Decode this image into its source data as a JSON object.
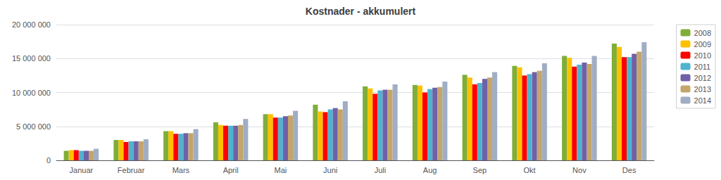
{
  "chart_data": {
    "type": "bar",
    "title": "Kostnader - akkumulert",
    "categories": [
      "Januar",
      "Februar",
      "Mars",
      "April",
      "Mai",
      "Juni",
      "Juli",
      "Aug",
      "Sep",
      "Okt",
      "Nov",
      "Des"
    ],
    "series": [
      {
        "name": "2008",
        "color": "#7fae39",
        "values": [
          1400000,
          3000000,
          4300000,
          5600000,
          6800000,
          8200000,
          10900000,
          11100000,
          12600000,
          13900000,
          15400000,
          17200000
        ]
      },
      {
        "name": "2009",
        "color": "#ffc000",
        "values": [
          1500000,
          3000000,
          4300000,
          5200000,
          6800000,
          7200000,
          10600000,
          11000000,
          12200000,
          13700000,
          15100000,
          16700000
        ]
      },
      {
        "name": "2010",
        "color": "#ff0000",
        "values": [
          1500000,
          2700000,
          3900000,
          5100000,
          6300000,
          7100000,
          9800000,
          10000000,
          11200000,
          12500000,
          13800000,
          15200000
        ]
      },
      {
        "name": "2011",
        "color": "#4fb3ce",
        "values": [
          1400000,
          2800000,
          3900000,
          5100000,
          6300000,
          7500000,
          10300000,
          10500000,
          11400000,
          12700000,
          14100000,
          15200000
        ]
      },
      {
        "name": "2012",
        "color": "#7060a8",
        "values": [
          1400000,
          2800000,
          4000000,
          5100000,
          6500000,
          7700000,
          10400000,
          10700000,
          12000000,
          13000000,
          14400000,
          15700000
        ]
      },
      {
        "name": "2013",
        "color": "#c4a56a",
        "values": [
          1400000,
          2800000,
          4000000,
          5200000,
          6600000,
          7500000,
          10400000,
          10800000,
          12200000,
          13200000,
          14200000,
          16000000
        ]
      },
      {
        "name": "2014",
        "color": "#a0aec4",
        "values": [
          1700000,
          3100000,
          4600000,
          6100000,
          7300000,
          8700000,
          11200000,
          11600000,
          13000000,
          14300000,
          15400000,
          17400000
        ]
      }
    ],
    "ylim": [
      0,
      20000000
    ],
    "yticks": [
      0,
      {
        "value": 5000000,
        "label": "5 000 000"
      },
      {
        "value": 10000000,
        "label": "10 000 000"
      },
      {
        "value": 15000000,
        "label": "15 000 000"
      },
      {
        "value": 20000000,
        "label": "20 000 000"
      }
    ],
    "grid": true,
    "legend": "right"
  }
}
